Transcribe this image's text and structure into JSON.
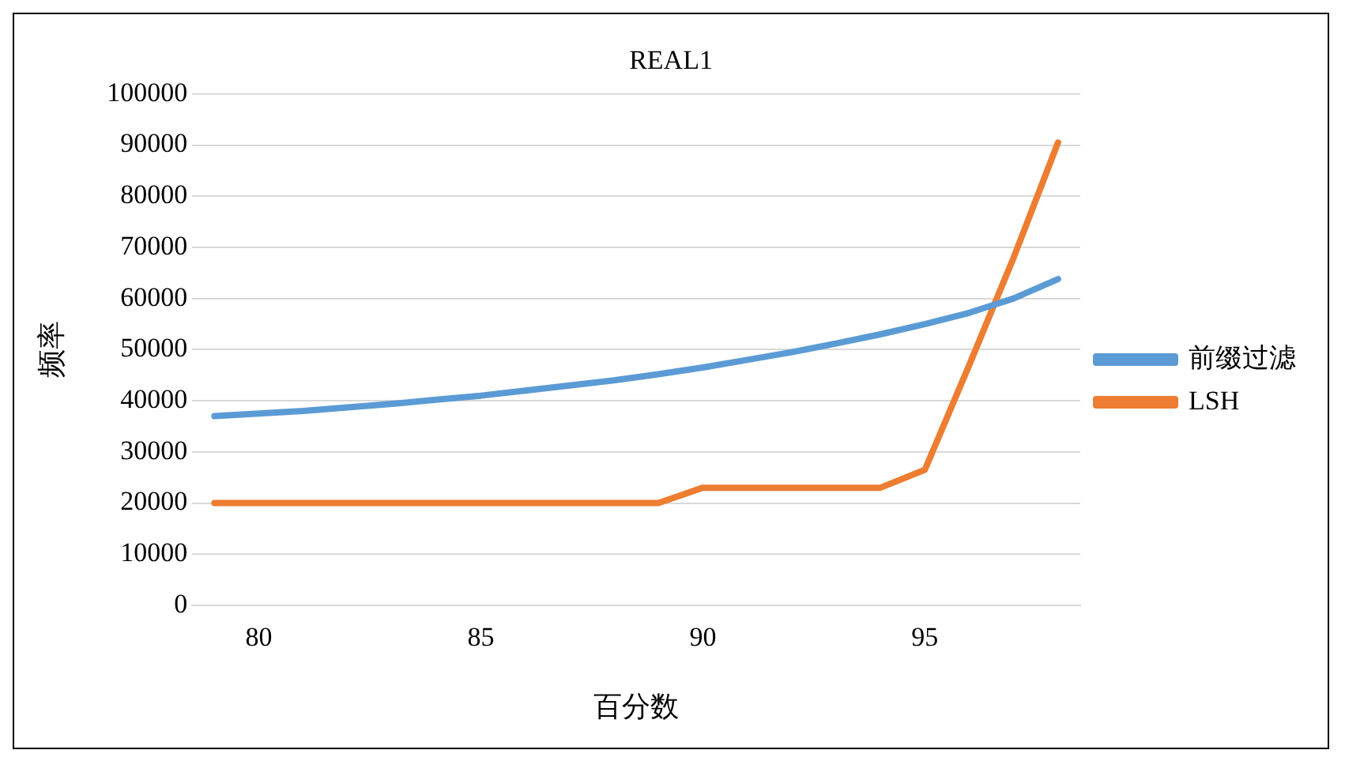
{
  "chart_data": {
    "type": "line",
    "title": "REAL1",
    "xlabel": "百分数",
    "ylabel": "频率",
    "x": [
      79,
      80,
      81,
      82,
      83,
      84,
      85,
      86,
      87,
      88,
      89,
      90,
      91,
      92,
      93,
      94,
      95,
      96,
      97,
      98
    ],
    "series": [
      {
        "name": "前缀过滤",
        "color": "#5b9bd5",
        "values": [
          37000,
          37500,
          38000,
          38700,
          39400,
          40200,
          41000,
          42000,
          43000,
          44000,
          45200,
          46500,
          48000,
          49500,
          51200,
          53000,
          55000,
          57200,
          60000,
          63800
        ]
      },
      {
        "name": "LSH",
        "color": "#ed7d31",
        "values": [
          20000,
          20000,
          20000,
          20000,
          20000,
          20000,
          20000,
          20000,
          20000,
          20000,
          20000,
          23000,
          23000,
          23000,
          23000,
          23000,
          26500,
          47000,
          68000,
          90500
        ]
      }
    ],
    "xlim": [
      78.5,
      98.5
    ],
    "xticks": [
      80,
      85,
      90,
      95
    ],
    "ylim": [
      0,
      100000
    ],
    "yticks": [
      0,
      10000,
      20000,
      30000,
      40000,
      50000,
      60000,
      70000,
      80000,
      90000,
      100000
    ],
    "grid": "y",
    "legend": "right",
    "marker": "none",
    "line_style": "solid"
  }
}
